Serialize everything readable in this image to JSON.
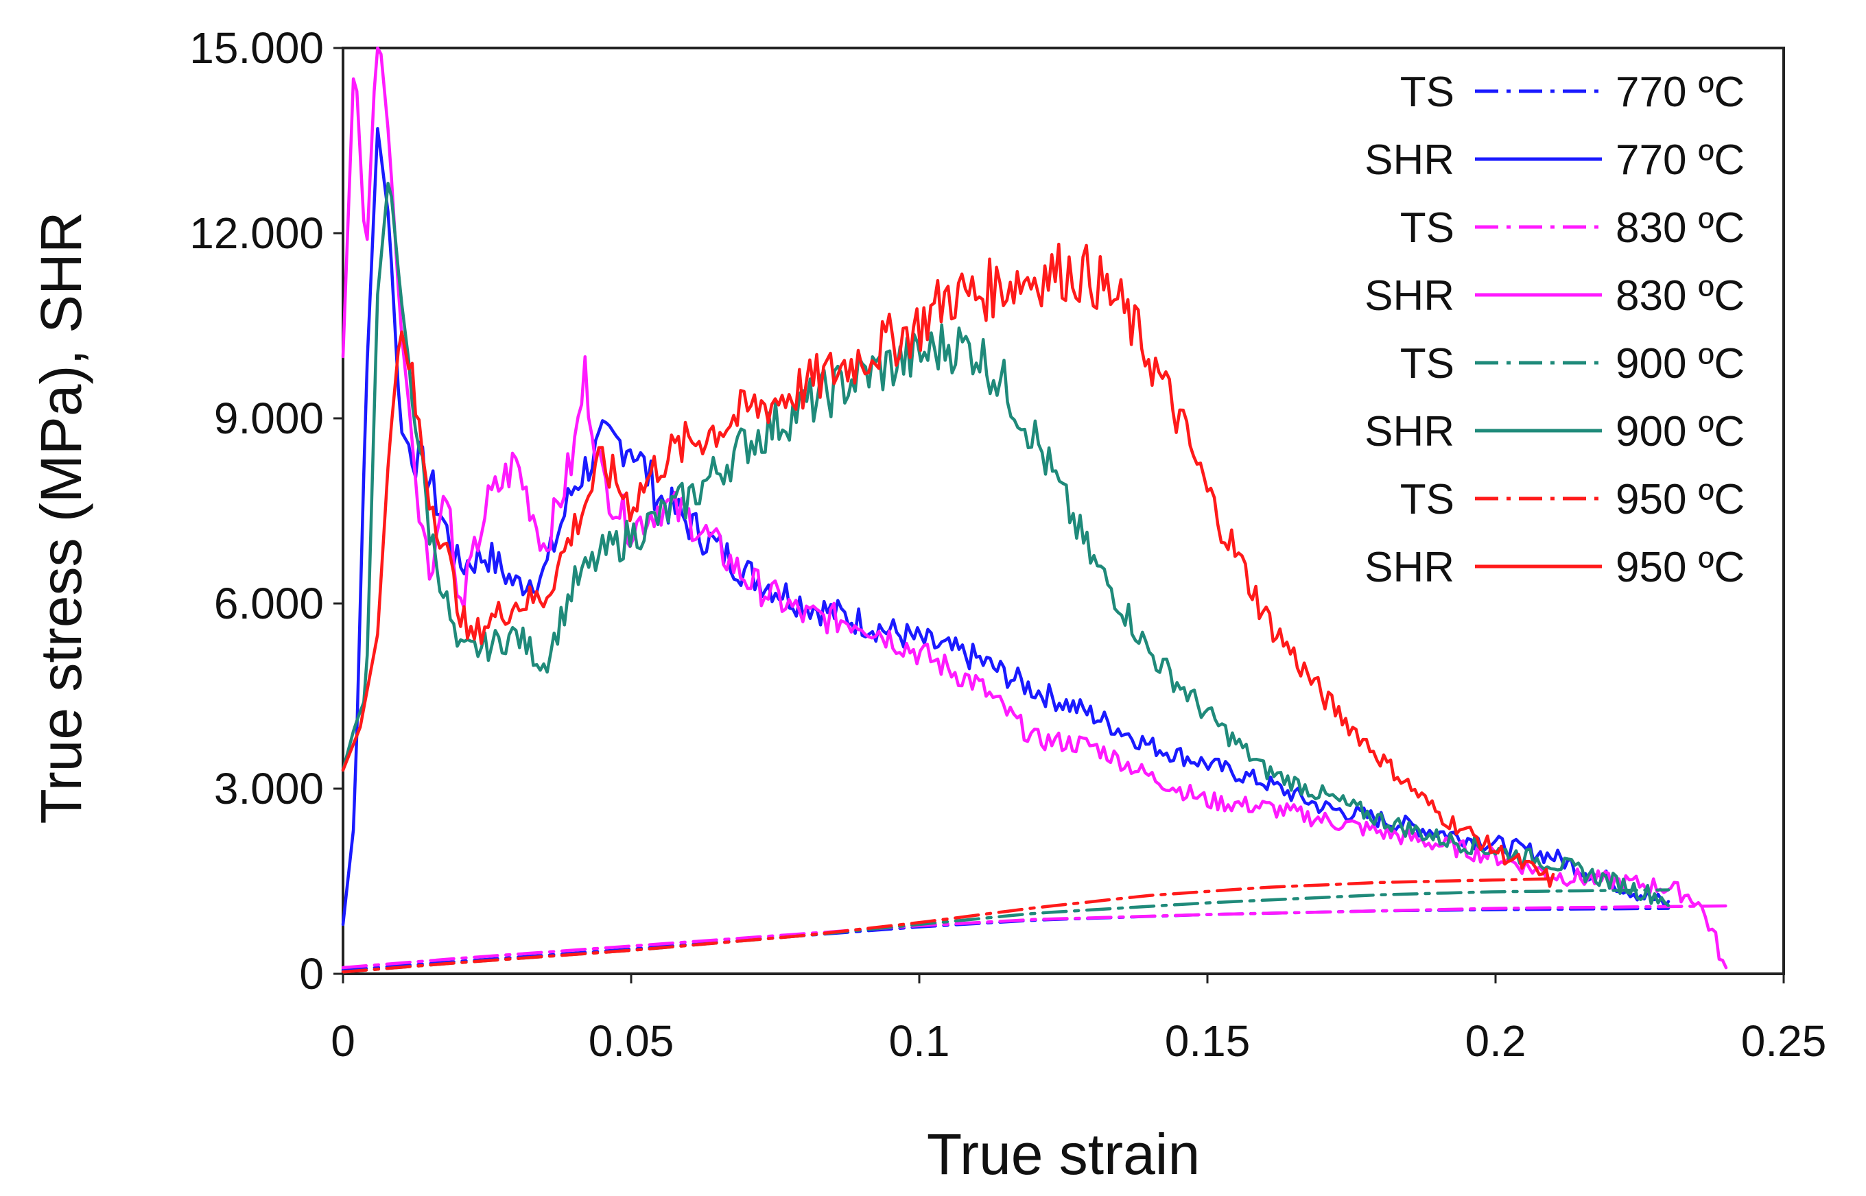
{
  "chart_data": {
    "type": "line",
    "title": "",
    "xlabel": "True strain",
    "ylabel": "True stress (MPa), SHR",
    "xlim": [
      0,
      0.25
    ],
    "ylim": [
      0,
      15000
    ],
    "x_ticks": [
      0,
      0.05,
      0.1,
      0.15,
      0.2,
      0.25
    ],
    "x_tick_labels": [
      "0",
      "0.05",
      "0.1",
      "0.15",
      "0.2",
      "0.25"
    ],
    "y_ticks": [
      0,
      3000,
      6000,
      9000,
      12000,
      15000
    ],
    "y_tick_labels": [
      "0",
      "3.000",
      "6.000",
      "9.000",
      "12.000",
      "15.000"
    ],
    "grid": false,
    "legend_position": "top-right",
    "series": [
      {
        "name": "TS 770 ºC",
        "legend_type": "TS",
        "legend_temp": "770 ºC",
        "color": "#1a1aff",
        "dash": "dashdot",
        "x": [
          0,
          0.02,
          0.05,
          0.08,
          0.1,
          0.12,
          0.15,
          0.18,
          0.2,
          0.23
        ],
        "y": [
          60,
          200,
          400,
          620,
          760,
          870,
          960,
          1020,
          1040,
          1060
        ]
      },
      {
        "name": "SHR 770 ºC",
        "legend_type": "SHR",
        "legend_temp": "770 ºC",
        "color": "#1a1aff",
        "dash": "solid",
        "x": [
          0,
          0.002,
          0.004,
          0.006,
          0.008,
          0.01,
          0.015,
          0.02,
          0.025,
          0.03,
          0.035,
          0.04,
          0.045,
          0.05,
          0.055,
          0.06,
          0.07,
          0.08,
          0.09,
          0.1,
          0.11,
          0.12,
          0.13,
          0.14,
          0.15,
          0.16,
          0.17,
          0.18,
          0.19,
          0.2,
          0.21,
          0.22,
          0.23
        ],
        "y": [
          800,
          2500,
          9500,
          13700,
          12200,
          8800,
          8000,
          6600,
          6800,
          6300,
          6500,
          7900,
          8600,
          8600,
          7700,
          7300,
          6500,
          6000,
          5700,
          5400,
          5100,
          4600,
          4200,
          3700,
          3400,
          3100,
          2700,
          2500,
          2300,
          2100,
          1900,
          1500,
          1100
        ]
      },
      {
        "name": "TS 830 ºC",
        "legend_type": "TS",
        "legend_temp": "830 ºC",
        "color": "#ff1aff",
        "dash": "dashdot",
        "x": [
          0,
          0.02,
          0.05,
          0.08,
          0.1,
          0.12,
          0.15,
          0.18,
          0.2,
          0.24
        ],
        "y": [
          100,
          250,
          450,
          650,
          780,
          880,
          960,
          1020,
          1060,
          1100
        ]
      },
      {
        "name": "SHR 830 ºC",
        "legend_type": "SHR",
        "legend_temp": "830 ºC",
        "color": "#ff1aff",
        "dash": "solid",
        "x": [
          0,
          0.002,
          0.004,
          0.006,
          0.008,
          0.01,
          0.013,
          0.015,
          0.018,
          0.02,
          0.025,
          0.03,
          0.035,
          0.04,
          0.042,
          0.045,
          0.05,
          0.055,
          0.06,
          0.07,
          0.08,
          0.09,
          0.1,
          0.11,
          0.12,
          0.13,
          0.14,
          0.15,
          0.16,
          0.17,
          0.18,
          0.19,
          0.2,
          0.21,
          0.22,
          0.23,
          0.235,
          0.238,
          0.24
        ],
        "y": [
          10000,
          15000,
          11500,
          15500,
          13500,
          10500,
          7800,
          6500,
          8000,
          5800,
          7600,
          8300,
          6900,
          8400,
          9700,
          8000,
          7200,
          7600,
          7400,
          6400,
          5800,
          5700,
          5200,
          4700,
          3800,
          3700,
          3200,
          2800,
          2700,
          2500,
          2300,
          2100,
          1900,
          1600,
          1500,
          1400,
          1200,
          600,
          0
        ]
      },
      {
        "name": "TS 900 ºC",
        "legend_type": "TS",
        "legend_temp": "900 ºC",
        "color": "#1f8a7a",
        "dash": "dashdot",
        "x": [
          0,
          0.02,
          0.05,
          0.08,
          0.1,
          0.12,
          0.15,
          0.18,
          0.2,
          0.23
        ],
        "y": [
          30,
          180,
          380,
          620,
          800,
          980,
          1150,
          1280,
          1330,
          1360
        ]
      },
      {
        "name": "SHR 900 ºC",
        "legend_type": "SHR",
        "legend_temp": "900 ºC",
        "color": "#1f8a7a",
        "dash": "solid",
        "x": [
          0,
          0.002,
          0.004,
          0.006,
          0.008,
          0.01,
          0.015,
          0.02,
          0.025,
          0.03,
          0.035,
          0.04,
          0.045,
          0.05,
          0.06,
          0.07,
          0.08,
          0.09,
          0.1,
          0.105,
          0.11,
          0.115,
          0.12,
          0.125,
          0.13,
          0.135,
          0.14,
          0.15,
          0.16,
          0.17,
          0.18,
          0.19,
          0.2,
          0.21,
          0.22,
          0.23
        ],
        "y": [
          3300,
          4000,
          4500,
          11000,
          13000,
          11000,
          7200,
          5200,
          5300,
          5500,
          5000,
          6300,
          6800,
          7100,
          7700,
          8600,
          9200,
          9700,
          10000,
          10200,
          10100,
          9500,
          8700,
          7700,
          6700,
          6000,
          5200,
          4200,
          3300,
          2900,
          2500,
          2200,
          2000,
          1800,
          1500,
          1200
        ]
      },
      {
        "name": "TS 950 ºC",
        "legend_type": "TS",
        "legend_temp": "950 ºC",
        "color": "#ff1a1a",
        "dash": "dashdot",
        "x": [
          0,
          0.02,
          0.05,
          0.08,
          0.1,
          0.12,
          0.14,
          0.16,
          0.18,
          0.2,
          0.21
        ],
        "y": [
          30,
          180,
          380,
          620,
          830,
          1070,
          1270,
          1400,
          1480,
          1520,
          1540
        ]
      },
      {
        "name": "SHR 950 ºC",
        "legend_type": "SHR",
        "legend_temp": "950 ºC",
        "color": "#ff1a1a",
        "dash": "solid",
        "x": [
          0,
          0.003,
          0.006,
          0.008,
          0.01,
          0.012,
          0.015,
          0.018,
          0.02,
          0.022,
          0.025,
          0.03,
          0.035,
          0.04,
          0.045,
          0.05,
          0.055,
          0.06,
          0.07,
          0.08,
          0.09,
          0.1,
          0.105,
          0.11,
          0.115,
          0.12,
          0.125,
          0.13,
          0.135,
          0.14,
          0.145,
          0.15,
          0.155,
          0.16,
          0.17,
          0.18,
          0.19,
          0.2,
          0.21
        ],
        "y": [
          3300,
          4000,
          5500,
          8500,
          10500,
          9500,
          7800,
          6800,
          6000,
          5400,
          5700,
          6000,
          6100,
          7200,
          8300,
          7600,
          8300,
          8600,
          9100,
          9500,
          10000,
          10500,
          11000,
          11000,
          11200,
          11300,
          11400,
          11300,
          10800,
          10000,
          9000,
          7800,
          6800,
          5800,
          4500,
          3500,
          2600,
          2000,
          1500
        ]
      }
    ]
  }
}
